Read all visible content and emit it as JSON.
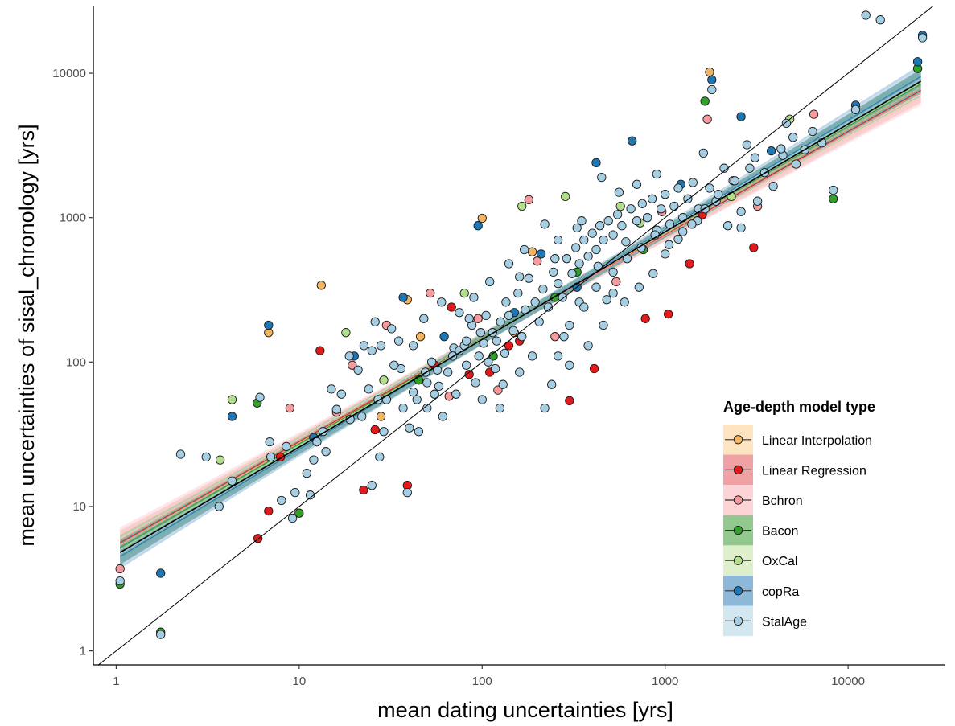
{
  "chart_data": {
    "type": "scatter",
    "xlabel": "mean dating uncertainties [yrs]",
    "ylabel": "mean uncertainties of sisal_chronology [yrs]",
    "x_scale": "log10",
    "y_scale": "log10",
    "xlim": [
      0.75,
      34000
    ],
    "ylim": [
      0.8,
      29000
    ],
    "x_ticks": [
      "1",
      "10",
      "100",
      "1000",
      "10000"
    ],
    "y_ticks": [
      "1",
      "10",
      "100",
      "1000",
      "10000"
    ],
    "grid": false,
    "legend": {
      "title": "Age-depth model type",
      "placement": "bottom-right"
    },
    "reference_line": {
      "type": "1:1",
      "color": "#000000"
    },
    "fit_line": {
      "points": [
        [
          1.05,
          4.8
        ],
        [
          25000,
          8800
        ]
      ],
      "color": "#000000",
      "ribbon_color": "#4f8f8f"
    },
    "series": [
      {
        "name": "Linear Interpolation",
        "fill": "#f5b664",
        "band": "#fde3c0",
        "fit": [
          [
            1.05,
            5.4
          ],
          [
            25000,
            8000
          ]
        ],
        "points": [
          [
            6.8,
            160
          ],
          [
            13.2,
            340
          ],
          [
            39,
            270
          ],
          [
            100,
            990
          ],
          [
            188,
            580
          ],
          [
            1750,
            10200
          ],
          [
            46,
            150
          ],
          [
            150,
            160
          ],
          [
            28,
            42
          ]
        ]
      },
      {
        "name": "Linear Regression",
        "fill": "#e31a1c",
        "band": "#f0a1a3",
        "fit": [
          [
            1.05,
            5.6
          ],
          [
            25000,
            7600
          ]
        ],
        "points": [
          [
            5.95,
            6.0
          ],
          [
            6.8,
            9.3
          ],
          [
            7.9,
            22
          ],
          [
            13,
            120
          ],
          [
            22.5,
            13
          ],
          [
            39,
            14
          ],
          [
            85,
            82
          ],
          [
            300,
            54
          ],
          [
            1040,
            215
          ],
          [
            1360,
            480
          ],
          [
            1600,
            1050
          ],
          [
            3050,
            620
          ],
          [
            55,
            95
          ],
          [
            140,
            130
          ],
          [
            160,
            140
          ],
          [
            110,
            85
          ],
          [
            410,
            90
          ],
          [
            780,
            200
          ],
          [
            26,
            34
          ],
          [
            68,
            240
          ]
        ]
      },
      {
        "name": "Bchron",
        "fill": "#f79a9e",
        "band": "#fcd4d5",
        "fit": [
          [
            1.05,
            5.9
          ],
          [
            25000,
            7300
          ]
        ],
        "points": [
          [
            1.05,
            3.7
          ],
          [
            8.9,
            48
          ],
          [
            19.5,
            95
          ],
          [
            52,
            300
          ],
          [
            66,
            58
          ],
          [
            180,
            1330
          ],
          [
            1700,
            4800
          ],
          [
            3200,
            1200
          ],
          [
            6500,
            5200
          ],
          [
            122,
            64
          ],
          [
            250,
            150
          ],
          [
            540,
            360
          ],
          [
            960,
            1100
          ],
          [
            95,
            200
          ],
          [
            200,
            500
          ],
          [
            30,
            180
          ],
          [
            16,
            45
          ]
        ]
      },
      {
        "name": "Bacon",
        "fill": "#33a02c",
        "band": "#93c88f",
        "fit": [
          [
            1.05,
            5.2
          ],
          [
            25000,
            8400
          ]
        ],
        "points": [
          [
            1.05,
            2.9
          ],
          [
            1.75,
            1.35
          ],
          [
            10,
            9.0
          ],
          [
            1650,
            6400
          ],
          [
            8300,
            1350
          ],
          [
            24000,
            10800
          ],
          [
            330,
            420
          ],
          [
            760,
            600
          ],
          [
            115,
            110
          ],
          [
            45,
            75
          ],
          [
            250,
            280
          ],
          [
            5.9,
            52
          ]
        ]
      },
      {
        "name": "OxCal",
        "fill": "#b2df8a",
        "band": "#ddefcb",
        "fit": [
          [
            1.05,
            5.0
          ],
          [
            25000,
            8600
          ]
        ],
        "points": [
          [
            4.3,
            55
          ],
          [
            3.7,
            21
          ],
          [
            29,
            75
          ],
          [
            165,
            1200
          ],
          [
            4800,
            4800
          ],
          [
            285,
            1400
          ],
          [
            730,
            920
          ],
          [
            18,
            160
          ],
          [
            80,
            300
          ],
          [
            570,
            1200
          ],
          [
            2300,
            1400
          ]
        ]
      },
      {
        "name": "copRa",
        "fill": "#1f78b4",
        "band": "#8eb8d8",
        "fit": [
          [
            1.05,
            4.5
          ],
          [
            25000,
            9500
          ]
        ],
        "points": [
          [
            1.75,
            3.45
          ],
          [
            4.3,
            42
          ],
          [
            6.8,
            180
          ],
          [
            37,
            280
          ],
          [
            95,
            880
          ],
          [
            660,
            3400
          ],
          [
            1800,
            9000
          ],
          [
            2600,
            5000
          ],
          [
            11000,
            6000
          ],
          [
            24000,
            12000
          ],
          [
            25500,
            18300
          ],
          [
            420,
            2400
          ],
          [
            210,
            560
          ],
          [
            330,
            330
          ],
          [
            1220,
            1700
          ],
          [
            3800,
            2900
          ],
          [
            150,
            220
          ],
          [
            62,
            150
          ],
          [
            20,
            110
          ],
          [
            12,
            30
          ]
        ]
      },
      {
        "name": "StalAge",
        "fill": "#a6cee3",
        "band": "#d3e7f1",
        "fit": [
          [
            1.05,
            4.7
          ],
          [
            25000,
            9100
          ]
        ],
        "points": [
          [
            1.05,
            3.05
          ],
          [
            1.75,
            1.3
          ],
          [
            2.25,
            23
          ],
          [
            3.1,
            22
          ],
          [
            3.65,
            10
          ],
          [
            4.3,
            15
          ],
          [
            6.1,
            57
          ],
          [
            6.9,
            28
          ],
          [
            9.2,
            8.3
          ],
          [
            12.5,
            28
          ],
          [
            16,
            47
          ],
          [
            18.8,
            110
          ],
          [
            22.6,
            130
          ],
          [
            25,
            14
          ],
          [
            27.5,
            22
          ],
          [
            32,
            170
          ],
          [
            36,
            90
          ],
          [
            39,
            12.5
          ],
          [
            44,
            55
          ],
          [
            49,
            85
          ],
          [
            53,
            100
          ],
          [
            58,
            68
          ],
          [
            61,
            42
          ],
          [
            70,
            125
          ],
          [
            75,
            120
          ],
          [
            82,
            95
          ],
          [
            88,
            180
          ],
          [
            96,
            110
          ],
          [
            102,
            135
          ],
          [
            108,
            100
          ],
          [
            114,
            160
          ],
          [
            120,
            140
          ],
          [
            126,
            190
          ],
          [
            133,
            115
          ],
          [
            140,
            210
          ],
          [
            148,
            165
          ],
          [
            157,
            300
          ],
          [
            165,
            150
          ],
          [
            172,
            230
          ],
          [
            180,
            380
          ],
          [
            195,
            260
          ],
          [
            205,
            190
          ],
          [
            215,
            320
          ],
          [
            230,
            240
          ],
          [
            245,
            420
          ],
          [
            260,
            350
          ],
          [
            275,
            280
          ],
          [
            290,
            520
          ],
          [
            310,
            410
          ],
          [
            325,
            620
          ],
          [
            340,
            480
          ],
          [
            360,
            700
          ],
          [
            380,
            540
          ],
          [
            400,
            780
          ],
          [
            420,
            600
          ],
          [
            440,
            880
          ],
          [
            460,
            700
          ],
          [
            490,
            950
          ],
          [
            520,
            760
          ],
          [
            550,
            1050
          ],
          [
            580,
            880
          ],
          [
            610,
            680
          ],
          [
            650,
            1150
          ],
          [
            700,
            950
          ],
          [
            750,
            1250
          ],
          [
            800,
            1000
          ],
          [
            850,
            1350
          ],
          [
            900,
            820
          ],
          [
            950,
            1150
          ],
          [
            1000,
            1450
          ],
          [
            1060,
            900
          ],
          [
            1120,
            1200
          ],
          [
            1180,
            1600
          ],
          [
            1250,
            1000
          ],
          [
            1330,
            1350
          ],
          [
            1420,
            1750
          ],
          [
            1520,
            1150
          ],
          [
            1620,
            2800
          ],
          [
            1750,
            1600
          ],
          [
            1900,
            1300
          ],
          [
            2100,
            2200
          ],
          [
            2350,
            1800
          ],
          [
            2600,
            850
          ],
          [
            2800,
            3200
          ],
          [
            3100,
            2600
          ],
          [
            3500,
            2050
          ],
          [
            3900,
            1650
          ],
          [
            4400,
            2700
          ],
          [
            4600,
            4500
          ],
          [
            5200,
            2350
          ],
          [
            5800,
            2950
          ],
          [
            6400,
            3950
          ],
          [
            7200,
            3300
          ],
          [
            8300,
            1550
          ],
          [
            11000,
            5600
          ],
          [
            12500,
            25200
          ],
          [
            15000,
            23400
          ],
          [
            25500,
            17600
          ],
          [
            1800,
            7700
          ],
          [
            480,
            270
          ],
          [
            340,
            260
          ],
          [
            22,
            42
          ],
          [
            27,
            55
          ],
          [
            14,
            24
          ],
          [
            11,
            17
          ],
          [
            8.5,
            26
          ],
          [
            17,
            60
          ],
          [
            21,
            88
          ],
          [
            25,
            120
          ],
          [
            30,
            55
          ],
          [
            35,
            140
          ],
          [
            40,
            35
          ],
          [
            55,
            60
          ],
          [
            65,
            85
          ],
          [
            72,
            60
          ],
          [
            80,
            130
          ],
          [
            92,
            72
          ],
          [
            118,
            90
          ],
          [
            130,
            70
          ],
          [
            160,
            85
          ],
          [
            188,
            110
          ],
          [
            240,
            70
          ],
          [
            260,
            110
          ],
          [
            280,
            150
          ],
          [
            300,
            180
          ],
          [
            360,
            240
          ],
          [
            420,
            330
          ],
          [
            520,
            420
          ],
          [
            620,
            520
          ],
          [
            740,
            620
          ],
          [
            880,
            760
          ],
          [
            1050,
            650
          ],
          [
            1250,
            800
          ],
          [
            1500,
            950
          ],
          [
            2200,
            880
          ],
          [
            2600,
            1100
          ],
          [
            3200,
            1300
          ],
          [
            900,
            2000
          ],
          [
            700,
            1700
          ],
          [
            560,
            1500
          ],
          [
            450,
            1900
          ],
          [
            350,
            950
          ],
          [
            260,
            700
          ],
          [
            220,
            900
          ],
          [
            170,
            600
          ],
          [
            140,
            480
          ],
          [
            110,
            360
          ],
          [
            90,
            280
          ],
          [
            75,
            220
          ],
          [
            60,
            260
          ],
          [
            48,
            200
          ],
          [
            42,
            130
          ],
          [
            33,
            95
          ],
          [
            28,
            130
          ],
          [
            24,
            65
          ],
          [
            19,
            40
          ],
          [
            15,
            65
          ],
          [
            13.5,
            33
          ],
          [
            12,
            21
          ],
          [
            11.5,
            12
          ],
          [
            9.5,
            12.5
          ],
          [
            8,
            11
          ],
          [
            7,
            22
          ],
          [
            26,
            190
          ],
          [
            29,
            33
          ],
          [
            45,
            33
          ],
          [
            50,
            48
          ],
          [
            85,
            200
          ],
          [
            100,
            55
          ],
          [
            125,
            48
          ],
          [
            220,
            48
          ],
          [
            300,
            95
          ],
          [
            380,
            130
          ],
          [
            460,
            180
          ],
          [
            600,
            260
          ],
          [
            720,
            330
          ],
          [
            860,
            410
          ],
          [
            1000,
            560
          ],
          [
            1180,
            710
          ],
          [
            1400,
            900
          ],
          [
            1650,
            1150
          ],
          [
            1950,
            1450
          ],
          [
            2400,
            1800
          ],
          [
            2900,
            2200
          ],
          [
            4300,
            3000
          ],
          [
            5000,
            3600
          ],
          [
            430,
            460
          ],
          [
            520,
            300
          ],
          [
            330,
            850
          ],
          [
            250,
            520
          ],
          [
            160,
            390
          ],
          [
            135,
            260
          ],
          [
            105,
            210
          ],
          [
            98,
            160
          ],
          [
            82,
            140
          ],
          [
            69,
            110
          ],
          [
            57,
            88
          ],
          [
            50,
            72
          ],
          [
            42,
            62
          ],
          [
            37,
            48
          ]
        ]
      }
    ]
  }
}
